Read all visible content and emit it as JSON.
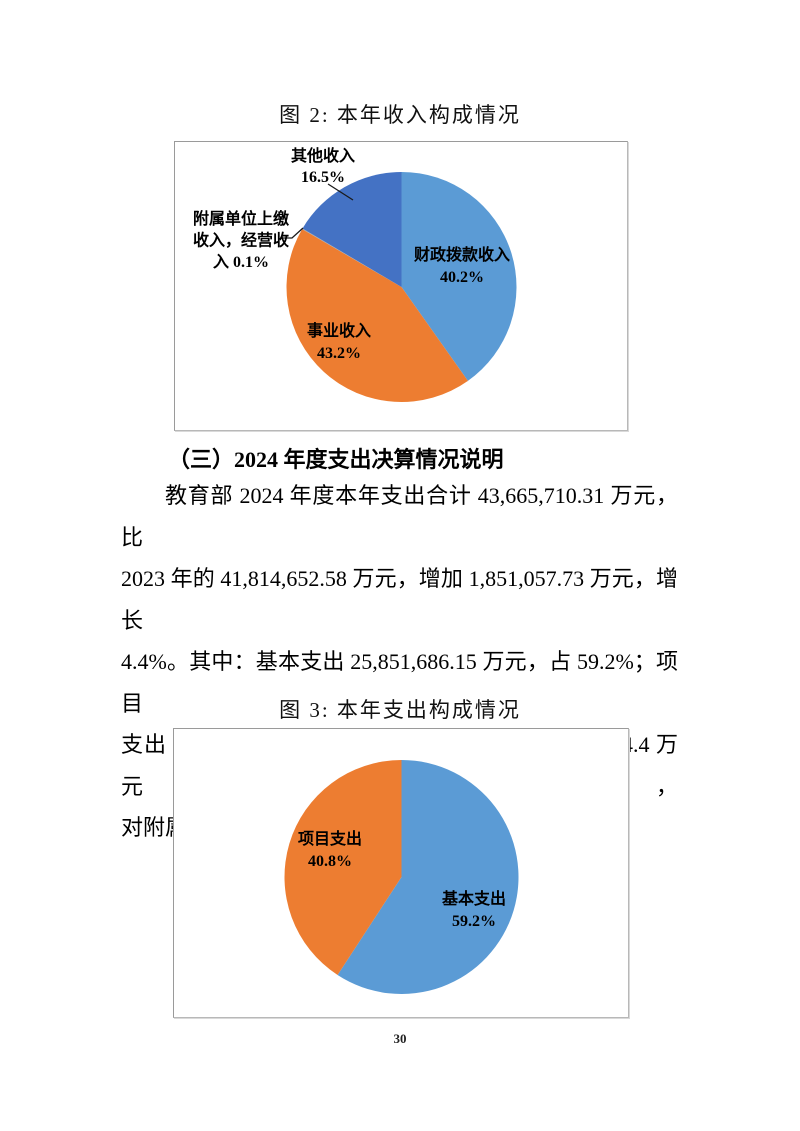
{
  "page": {
    "number": "30"
  },
  "figure2": {
    "caption": "图 2:  本年收入构成情况"
  },
  "section": {
    "heading": "（三）2024 年度支出决算情况说明",
    "lines": [
      "教育部 2024 年度本年支出合计 43,665,710.31 万元，比",
      "2023 年的 41,814,652.58 万元，增加 1,851,057.73 万元，增长",
      "4.4%。其中：基本支出 25,851,686.15 万元，占 59.2%；项目",
      "支出 17,799,199.76 万元，占 40.8%; 经营支出 14,694.4 万元，",
      "对附属单位补助支出 130 万元。"
    ]
  },
  "figure3": {
    "caption": "图 3:  本年支出构成情况"
  },
  "chart_data": [
    {
      "type": "pie",
      "title": "图 2: 本年收入构成情况",
      "start_angle_deg": 0,
      "direction": "clockwise",
      "legend": "none",
      "slices": [
        {
          "label": "财政拨款收入",
          "value_pct": 40.2,
          "color": "#5B9BD5",
          "label_lines": [
            "财政拨款收入",
            "40.2%"
          ]
        },
        {
          "label": "事业收入",
          "value_pct": 43.2,
          "color": "#ED7D31",
          "label_lines": [
            "事业收入",
            "43.2%"
          ]
        },
        {
          "label": "附属单位上缴收入，经营收入",
          "value_pct": 0.1,
          "color": "#A5A5A5",
          "label_lines": [
            "附属单位上缴",
            "收入，经营收",
            "入 0.1%"
          ]
        },
        {
          "label": "其他收入",
          "value_pct": 16.5,
          "color": "#4472C4",
          "label_lines": [
            "其他收入",
            "16.5%"
          ]
        }
      ]
    },
    {
      "type": "pie",
      "title": "图 3: 本年支出构成情况",
      "start_angle_deg": 0,
      "direction": "clockwise",
      "legend": "none",
      "slices": [
        {
          "label": "基本支出",
          "value_pct": 59.2,
          "color": "#5B9BD5",
          "label_lines": [
            "基本支出",
            "59.2%"
          ]
        },
        {
          "label": "项目支出",
          "value_pct": 40.8,
          "color": "#ED7D31",
          "label_lines": [
            "项目支出",
            "40.8%"
          ]
        }
      ]
    }
  ],
  "colors": {
    "pie_blue_light": "#5B9BD5",
    "pie_orange": "#ED7D31",
    "pie_blue_dark": "#4472C4",
    "frame_border": "#9a9a9a"
  }
}
